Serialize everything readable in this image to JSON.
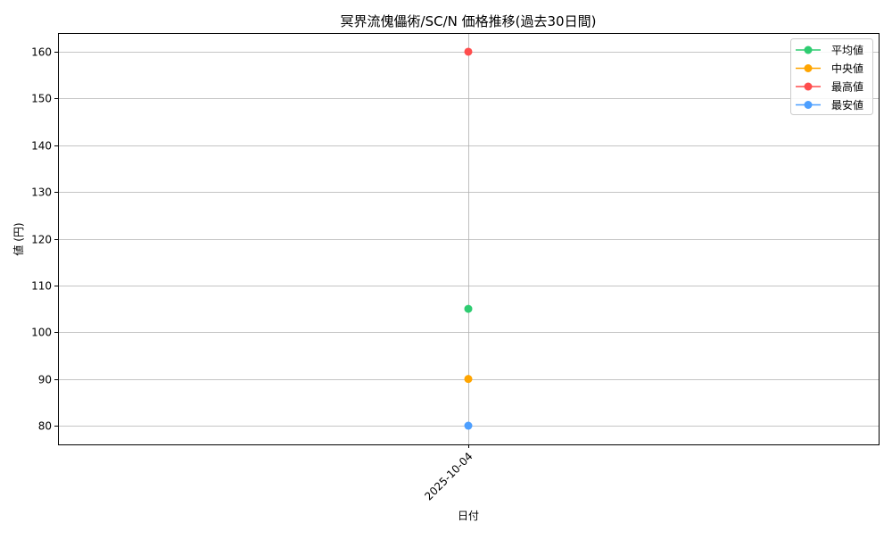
{
  "chart_data": {
    "type": "line",
    "title": "冥界流傀儡術/SC/N 価格推移(過去30日間)",
    "xlabel": "日付",
    "ylabel": "値 (円)",
    "x": [
      "2025-10-04"
    ],
    "ylim": [
      76,
      164
    ],
    "yticks": [
      80,
      90,
      100,
      110,
      120,
      130,
      140,
      150,
      160
    ],
    "grid": true,
    "legend_position": "top-right",
    "series": [
      {
        "name": "平均値",
        "values": [
          105
        ],
        "color": "#2ecc71"
      },
      {
        "name": "中央値",
        "values": [
          90
        ],
        "color": "#ffa500"
      },
      {
        "name": "最高値",
        "values": [
          160
        ],
        "color": "#ff4d4d"
      },
      {
        "name": "最安値",
        "values": [
          80
        ],
        "color": "#4d9fff"
      }
    ]
  }
}
